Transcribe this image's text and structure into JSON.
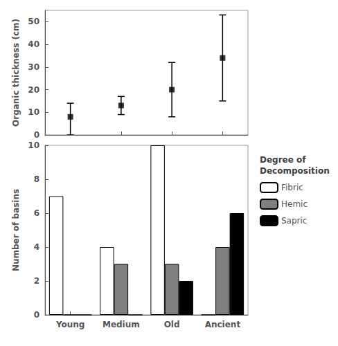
{
  "chart_data": [
    {
      "type": "scatter",
      "categories": [
        "Young",
        "Medium",
        "Old",
        "Ancient"
      ],
      "values": [
        8,
        13,
        20,
        34
      ],
      "errors_upper": [
        6,
        4,
        12,
        19
      ],
      "errors_lower": [
        8,
        4,
        12,
        19
      ],
      "ylabel": "Organic thickness (cm)",
      "ylim": [
        0,
        55
      ],
      "yticks": [
        0,
        10,
        20,
        30,
        40,
        50
      ],
      "color": "#000000",
      "marker": "square",
      "grid": false,
      "tick_labels": "y"
    },
    {
      "type": "bar",
      "categories": [
        "Young",
        "Medium",
        "Old",
        "Ancient"
      ],
      "series": [
        {
          "name": "Fibric",
          "color": "#ffffff",
          "values": [
            7,
            4,
            10,
            0
          ]
        },
        {
          "name": "Hemic",
          "color": "#808080",
          "values": [
            0,
            3,
            3,
            4
          ]
        },
        {
          "name": "Sapric",
          "color": "#000000",
          "values": [
            0,
            0,
            2,
            6
          ]
        }
      ],
      "ylabel": "Number of basins",
      "ylim": [
        0,
        10
      ],
      "yticks": [
        0,
        2,
        4,
        6,
        8,
        10
      ],
      "grid": false,
      "legend": "upper right",
      "legend_title": "Degree of\nDecomposition"
    }
  ]
}
